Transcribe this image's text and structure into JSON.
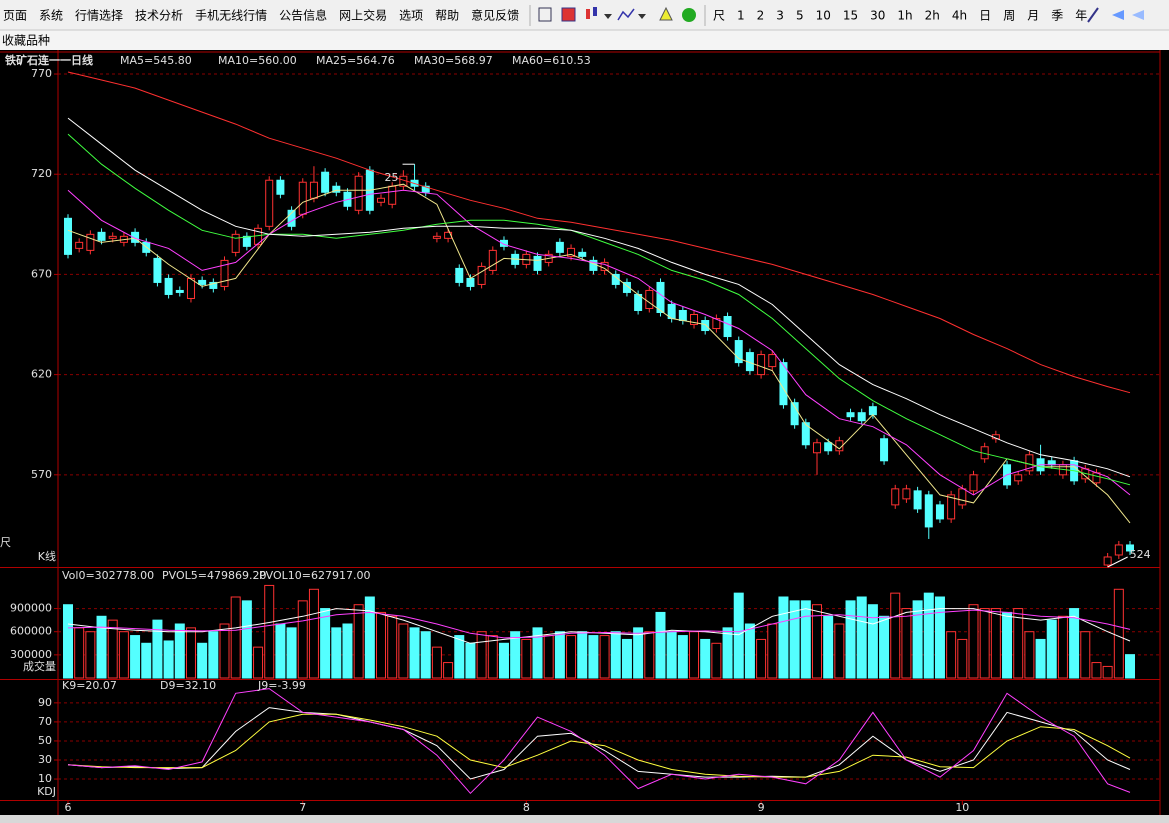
{
  "menu": [
    "页面",
    "系统",
    "行情选择",
    "技术分析",
    "手机无线行情",
    "公告信息",
    "网上交易",
    "选项",
    "帮助",
    "意见反馈"
  ],
  "periods": [
    "尺",
    "1",
    "2",
    "3",
    "5",
    "10",
    "15",
    "30",
    "1h",
    "2h",
    "4h",
    "日",
    "周",
    "月",
    "季",
    "年"
  ],
  "favorites": "收藏品种",
  "left_edge_label": "尺",
  "chart_data": [
    {
      "type": "candlestick",
      "title": "铁矿石连一一日线",
      "panel_label": "K线",
      "up_color": "#ff3232",
      "down_color": "#54ffff",
      "ylim": [
        524,
        776
      ],
      "yticks": [
        570,
        620,
        670,
        720,
        770
      ],
      "grid": true,
      "open": [
        698,
        683,
        682,
        691,
        688,
        686,
        691,
        686,
        678,
        668,
        662,
        658,
        667,
        666,
        664,
        681,
        689,
        685,
        694,
        717,
        702,
        700,
        708,
        721,
        714,
        711,
        702,
        722,
        706,
        705,
        714,
        717,
        714,
        688,
        688,
        673,
        668,
        665,
        672,
        687,
        680,
        675,
        679,
        676,
        686,
        679,
        681,
        677,
        672,
        670,
        666,
        660,
        653,
        666,
        655,
        652,
        645,
        647,
        643,
        649,
        637,
        631,
        620,
        624,
        626,
        606,
        596,
        581,
        586,
        582,
        601,
        601,
        604,
        588,
        555,
        558,
        562,
        560,
        555,
        548,
        555,
        562,
        578,
        588,
        575,
        567,
        572,
        578,
        577,
        570,
        577,
        568,
        566,
        525,
        530,
        535
      ],
      "high": [
        700,
        688,
        692,
        693,
        691,
        691,
        693,
        688,
        680,
        670,
        664,
        670,
        669,
        668,
        679,
        692,
        691,
        695,
        719,
        719,
        704,
        718,
        724,
        723,
        716,
        713,
        721,
        724,
        710,
        716,
        722,
        725,
        716,
        691,
        693,
        675,
        670,
        676,
        684,
        689,
        682,
        682,
        681,
        682,
        688,
        685,
        683,
        679,
        678,
        672,
        668,
        662,
        664,
        668,
        657,
        654,
        652,
        649,
        650,
        651,
        639,
        633,
        632,
        632,
        628,
        608,
        598,
        588,
        588,
        589,
        603,
        603,
        606,
        590,
        565,
        565,
        564,
        562,
        557,
        562,
        565,
        572,
        586,
        592,
        577,
        572,
        582,
        585,
        579,
        577,
        579,
        575,
        573,
        531,
        537,
        537
      ],
      "low": [
        678,
        681,
        680,
        685,
        686,
        684,
        684,
        679,
        664,
        658,
        659,
        656,
        663,
        661,
        662,
        679,
        682,
        683,
        692,
        708,
        692,
        698,
        706,
        709,
        709,
        702,
        700,
        700,
        704,
        703,
        712,
        712,
        709,
        686,
        686,
        664,
        662,
        663,
        670,
        682,
        673,
        673,
        670,
        674,
        679,
        677,
        677,
        670,
        670,
        663,
        659,
        650,
        651,
        649,
        646,
        645,
        643,
        640,
        641,
        637,
        624,
        620,
        618,
        622,
        603,
        593,
        583,
        570,
        580,
        580,
        597,
        595,
        598,
        575,
        553,
        556,
        551,
        538,
        546,
        546,
        553,
        560,
        576,
        586,
        563,
        565,
        570,
        570,
        573,
        568,
        565,
        566,
        564,
        524,
        528,
        530
      ],
      "close": [
        680,
        686,
        690,
        687,
        689,
        689,
        686,
        681,
        666,
        660,
        661,
        668,
        665,
        663,
        677,
        690,
        684,
        693,
        717,
        710,
        694,
        716,
        716,
        711,
        711,
        704,
        719,
        702,
        708,
        714,
        719,
        714,
        711,
        689,
        691,
        666,
        664,
        674,
        682,
        684,
        675,
        680,
        672,
        680,
        681,
        683,
        679,
        672,
        676,
        665,
        661,
        652,
        662,
        651,
        648,
        647,
        650,
        642,
        648,
        639,
        626,
        622,
        630,
        630,
        605,
        595,
        585,
        586,
        582,
        587,
        599,
        597,
        600,
        577,
        563,
        563,
        553,
        544,
        548,
        560,
        563,
        570,
        584,
        590,
        565,
        570,
        580,
        572,
        575,
        575,
        567,
        573,
        571,
        529,
        535,
        532
      ],
      "series_x": [
        0,
        3,
        6,
        9,
        12,
        15,
        18,
        21,
        24,
        27,
        30,
        33,
        36,
        39,
        42,
        45,
        48,
        51,
        54,
        57,
        60,
        63,
        66,
        69,
        72,
        75,
        78,
        81,
        84,
        87,
        90,
        93,
        95
      ],
      "series": [
        {
          "name": "MA5=545.80",
          "color": "#f0e68c",
          "values": [
            692,
            686,
            688,
            675,
            664,
            668,
            690,
            706,
            712,
            712,
            715,
            705,
            668,
            678,
            677,
            680,
            673,
            660,
            648,
            645,
            628,
            622,
            595,
            583,
            600,
            580,
            560,
            556,
            578,
            574,
            574,
            560,
            546
          ]
        },
        {
          "name": "MA10=560.00",
          "color": "#ff40ff",
          "values": [
            712,
            697,
            688,
            683,
            672,
            676,
            690,
            700,
            706,
            710,
            712,
            710,
            695,
            685,
            680,
            678,
            675,
            668,
            656,
            650,
            643,
            632,
            610,
            598,
            594,
            585,
            570,
            560,
            570,
            575,
            575,
            569,
            560
          ]
        },
        {
          "name": "MA25=564.76",
          "color": "#40ff40",
          "values": [
            740,
            725,
            713,
            702,
            692,
            688,
            690,
            690,
            688,
            690,
            692,
            695,
            697,
            697,
            695,
            692,
            686,
            680,
            672,
            667,
            660,
            648,
            633,
            618,
            607,
            598,
            590,
            582,
            578,
            574,
            572,
            568,
            565
          ]
        },
        {
          "name": "MA30=568.97",
          "color": "#ffffff",
          "values": [
            748,
            735,
            722,
            712,
            702,
            694,
            690,
            689,
            690,
            691,
            693,
            694,
            694,
            693,
            693,
            692,
            688,
            683,
            676,
            670,
            665,
            655,
            640,
            625,
            615,
            608,
            600,
            593,
            586,
            580,
            577,
            573,
            569
          ]
        },
        {
          "name": "MA60=610.53",
          "color": "#ff3030",
          "values": [
            771,
            767,
            763,
            757,
            751,
            745,
            738,
            733,
            728,
            722,
            717,
            712,
            707,
            703,
            698,
            696,
            693,
            690,
            687,
            683,
            679,
            675,
            670,
            665,
            660,
            654,
            648,
            640,
            633,
            625,
            619,
            614,
            611
          ]
        }
      ],
      "annotations": [
        {
          "text": "25",
          "x": 31,
          "y": 725
        },
        {
          "text": "524",
          "x": 93,
          "y": 524
        }
      ]
    },
    {
      "type": "bar",
      "panel_label": "成交量",
      "value_legend": "Vol0=302778.00",
      "ylim": [
        0,
        1400000
      ],
      "yticks": [
        300000,
        600000,
        900000
      ],
      "grid": true,
      "values": [
        950000,
        650000,
        600000,
        800000,
        750000,
        600000,
        550000,
        450000,
        750000,
        480000,
        700000,
        650000,
        450000,
        600000,
        700000,
        1050000,
        1000000,
        400000,
        1200000,
        700000,
        650000,
        1000000,
        1150000,
        900000,
        650000,
        700000,
        950000,
        1050000,
        850000,
        800000,
        700000,
        650000,
        600000,
        400000,
        200000,
        550000,
        450000,
        600000,
        550000,
        450000,
        600000,
        500000,
        650000,
        550000,
        600000,
        550000,
        600000,
        550000,
        550000,
        600000,
        500000,
        650000,
        600000,
        850000,
        600000,
        550000,
        600000,
        500000,
        450000,
        650000,
        1100000,
        700000,
        500000,
        700000,
        1050000,
        1000000,
        1000000,
        950000,
        800000,
        700000,
        1000000,
        1050000,
        950000,
        800000,
        1100000,
        900000,
        1000000,
        1100000,
        1050000,
        600000,
        500000,
        950000,
        900000,
        900000,
        850000,
        900000,
        600000,
        500000,
        750000,
        800000,
        900000,
        600000,
        200000,
        150000,
        1150000,
        302778
      ],
      "series_x": [
        0,
        3,
        6,
        9,
        12,
        15,
        18,
        21,
        24,
        27,
        30,
        33,
        36,
        39,
        42,
        45,
        48,
        51,
        54,
        57,
        60,
        63,
        66,
        69,
        72,
        75,
        78,
        81,
        84,
        87,
        90,
        93,
        95
      ],
      "series": [
        {
          "name": "PVOL5=479869.20",
          "color": "#ffffff",
          "values": [
            700000,
            650000,
            620000,
            600000,
            600000,
            650000,
            720000,
            800000,
            900000,
            870000,
            750000,
            600000,
            450000,
            500000,
            550000,
            600000,
            580000,
            560000,
            620000,
            600000,
            560000,
            800000,
            900000,
            800000,
            700000,
            850000,
            900000,
            900000,
            800000,
            750000,
            800000,
            600000,
            480000
          ]
        },
        {
          "name": "PVOL10=627917.00",
          "color": "#ff40ff",
          "values": [
            650000,
            660000,
            640000,
            620000,
            610000,
            620000,
            680000,
            740000,
            820000,
            850000,
            800000,
            700000,
            580000,
            520000,
            530000,
            580000,
            590000,
            580000,
            600000,
            610000,
            600000,
            700000,
            800000,
            820000,
            780000,
            800000,
            850000,
            880000,
            850000,
            800000,
            780000,
            700000,
            630000
          ]
        }
      ]
    },
    {
      "type": "line",
      "panel_label": "KDJ",
      "ylim": [
        -12,
        114
      ],
      "yticks": [
        10,
        30,
        50,
        70,
        90
      ],
      "grid": true,
      "xticks": [
        {
          "value": 0,
          "label": "6"
        },
        {
          "value": 21,
          "label": "7"
        },
        {
          "value": 41,
          "label": "8"
        },
        {
          "value": 62,
          "label": "9"
        },
        {
          "value": 80,
          "label": "10"
        }
      ],
      "series_x": [
        0,
        3,
        6,
        9,
        12,
        15,
        18,
        21,
        24,
        27,
        30,
        33,
        36,
        39,
        42,
        45,
        48,
        51,
        54,
        57,
        60,
        63,
        66,
        69,
        72,
        75,
        78,
        81,
        84,
        87,
        90,
        93,
        95
      ],
      "series": [
        {
          "name": "K9=20.07",
          "color": "#ffffff",
          "values": [
            25,
            22,
            23,
            21,
            22,
            60,
            85,
            80,
            78,
            70,
            62,
            45,
            10,
            20,
            55,
            58,
            40,
            18,
            15,
            12,
            12,
            13,
            12,
            25,
            55,
            30,
            18,
            30,
            80,
            70,
            60,
            30,
            20
          ]
        },
        {
          "name": "D9=32.10",
          "color": "#ffff40",
          "values": [
            25,
            23,
            22,
            22,
            22,
            40,
            70,
            78,
            78,
            72,
            65,
            55,
            30,
            22,
            35,
            50,
            45,
            30,
            20,
            15,
            13,
            12,
            12,
            18,
            35,
            33,
            23,
            22,
            50,
            65,
            62,
            45,
            32
          ]
        },
        {
          "name": "J9=-3.99",
          "color": "#ff40ff",
          "values": [
            25,
            22,
            24,
            20,
            28,
            100,
            105,
            80,
            75,
            70,
            62,
            35,
            -5,
            30,
            75,
            60,
            35,
            0,
            15,
            10,
            15,
            12,
            5,
            30,
            80,
            30,
            12,
            40,
            100,
            75,
            55,
            5,
            -4
          ]
        }
      ]
    }
  ]
}
